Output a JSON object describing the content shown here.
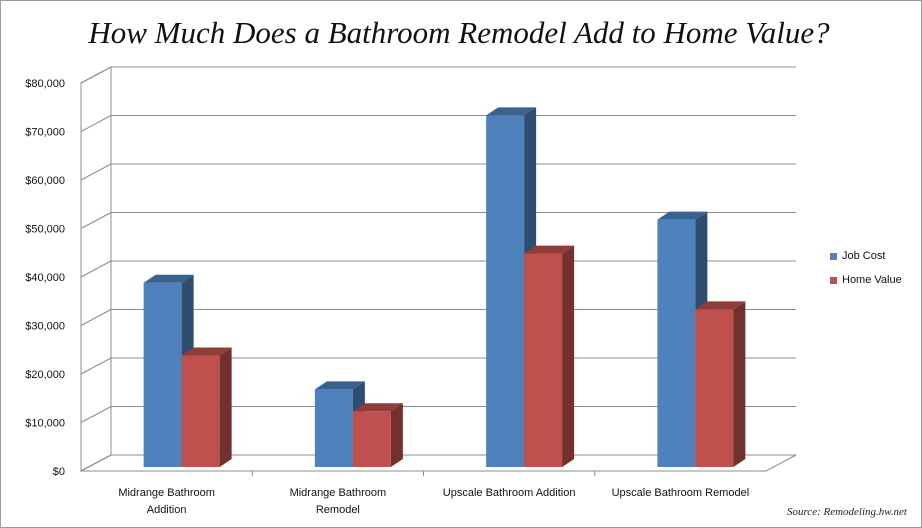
{
  "chart_data": {
    "type": "bar",
    "title": "How Much Does a Bathroom Remodel Add to Home Value?",
    "categories": [
      [
        "Midrange Bathroom",
        "Addition"
      ],
      [
        "Midrange Bathroom",
        "Remodel"
      ],
      [
        "Upscale Bathroom Addition"
      ],
      [
        "Upscale Bathroom Remodel"
      ]
    ],
    "series": [
      {
        "name": "Job Cost",
        "color": "#4f81bd",
        "values": [
          38000,
          16000,
          72500,
          51000
        ]
      },
      {
        "name": "Home Value",
        "color": "#c0504d",
        "values": [
          23000,
          11500,
          44000,
          32500
        ]
      }
    ],
    "ylim": [
      0,
      80000
    ],
    "yticks": [
      "$0",
      "$10,000",
      "$20,000",
      "$30,000",
      "$40,000",
      "$50,000",
      "$60,000",
      "$70,000",
      "$80,000"
    ],
    "grid": true,
    "legend_position": "right",
    "style": "3d-clustered-column",
    "source": "Source: Remodeling.hw.net"
  }
}
